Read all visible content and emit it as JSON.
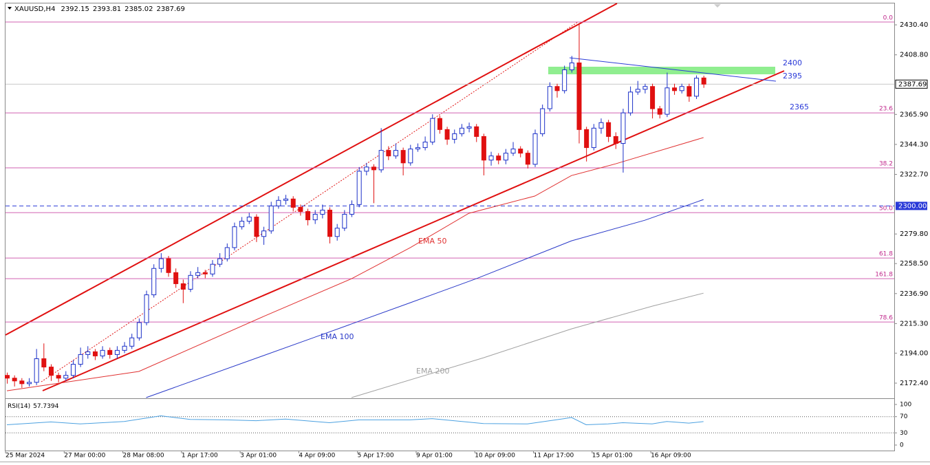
{
  "chart_data": {
    "type": "candlestick",
    "symbol": "XAUUSD,H4",
    "categories": [
      "25 Mar 2024",
      null,
      null,
      null,
      null,
      null,
      null,
      null,
      "27 Mar 00:00",
      null,
      null,
      null,
      null,
      null,
      null,
      null,
      "28 Mar 08:00",
      null,
      null,
      null,
      null,
      null,
      null,
      null,
      "1 Apr 17:00",
      null,
      null,
      null,
      null,
      null,
      null,
      null,
      "3 Apr 01:00",
      null,
      null,
      null,
      null,
      null,
      null,
      null,
      "4 Apr 09:00",
      null,
      null,
      null,
      null,
      null,
      null,
      null,
      "5 Apr 17:00",
      null,
      null,
      null,
      null,
      null,
      null,
      null,
      "9 Apr 01:00",
      null,
      null,
      null,
      null,
      null,
      null,
      null,
      "10 Apr 09:00",
      null,
      null,
      null,
      null,
      null,
      null,
      null,
      "11 Apr 17:00",
      null,
      null,
      null,
      null,
      null,
      null,
      null,
      "15 Apr 01:00",
      null,
      null,
      null,
      null,
      null,
      null,
      null,
      "16 Apr 09:00",
      null,
      null,
      null,
      null,
      null,
      null,
      null
    ],
    "ohlc": [
      [
        2178,
        2180,
        2172,
        2176
      ],
      [
        2176,
        2178,
        2170,
        2174
      ],
      [
        2174,
        2176,
        2169,
        2172
      ],
      [
        2172,
        2176,
        2170,
        2173
      ],
      [
        2173,
        2197,
        2171,
        2190
      ],
      [
        2190,
        2201,
        2181,
        2184
      ],
      [
        2184,
        2186,
        2174,
        2178
      ],
      [
        2178,
        2180,
        2173,
        2176
      ],
      [
        2176,
        2181,
        2174,
        2178
      ],
      [
        2178,
        2189,
        2176,
        2186
      ],
      [
        2186,
        2198,
        2184,
        2193
      ],
      [
        2193,
        2199,
        2190,
        2195
      ],
      [
        2195,
        2197,
        2189,
        2192
      ],
      [
        2192,
        2199,
        2190,
        2196
      ],
      [
        2196,
        2198,
        2190,
        2193
      ],
      [
        2193,
        2199,
        2190,
        2196
      ],
      [
        2196,
        2202,
        2194,
        2199
      ],
      [
        2199,
        2208,
        2197,
        2205
      ],
      [
        2205,
        2219,
        2203,
        2216
      ],
      [
        2216,
        2239,
        2214,
        2236
      ],
      [
        2236,
        2258,
        2234,
        2255
      ],
      [
        2255,
        2266,
        2252,
        2262
      ],
      [
        2262,
        2264,
        2249,
        2252
      ],
      [
        2252,
        2255,
        2241,
        2244
      ],
      [
        2244,
        2247,
        2230,
        2240
      ],
      [
        2240,
        2253,
        2238,
        2250
      ],
      [
        2250,
        2256,
        2248,
        2252
      ],
      [
        2252,
        2254,
        2248,
        2251
      ],
      [
        2251,
        2261,
        2249,
        2258
      ],
      [
        2258,
        2266,
        2256,
        2262
      ],
      [
        2262,
        2273,
        2260,
        2270
      ],
      [
        2270,
        2288,
        2268,
        2285
      ],
      [
        2285,
        2292,
        2283,
        2289
      ],
      [
        2289,
        2295,
        2287,
        2292
      ],
      [
        2292,
        2294,
        2274,
        2278
      ],
      [
        2278,
        2285,
        2272,
        2282
      ],
      [
        2282,
        2303,
        2280,
        2300
      ],
      [
        2300,
        2307,
        2298,
        2304
      ],
      [
        2304,
        2308,
        2301,
        2305
      ],
      [
        2305,
        2307,
        2296,
        2299
      ],
      [
        2299,
        2301,
        2293,
        2296
      ],
      [
        2296,
        2298,
        2286,
        2290
      ],
      [
        2290,
        2297,
        2287,
        2294
      ],
      [
        2294,
        2301,
        2291,
        2297
      ],
      [
        2297,
        2299,
        2273,
        2278
      ],
      [
        2278,
        2287,
        2275,
        2284
      ],
      [
        2284,
        2297,
        2282,
        2294
      ],
      [
        2294,
        2304,
        2292,
        2301
      ],
      [
        2301,
        2328,
        2299,
        2325
      ],
      [
        2325,
        2331,
        2322,
        2328
      ],
      [
        2328,
        2330,
        2302,
        2326
      ],
      [
        2326,
        2356,
        2324,
        2340
      ],
      [
        2340,
        2343,
        2333,
        2336
      ],
      [
        2336,
        2345,
        2334,
        2340
      ],
      [
        2340,
        2342,
        2322,
        2331
      ],
      [
        2331,
        2344,
        2329,
        2341
      ],
      [
        2341,
        2345,
        2339,
        2342
      ],
      [
        2342,
        2350,
        2340,
        2346
      ],
      [
        2346,
        2366,
        2344,
        2363
      ],
      [
        2363,
        2365,
        2352,
        2355
      ],
      [
        2355,
        2357,
        2344,
        2348
      ],
      [
        2348,
        2355,
        2345,
        2352
      ],
      [
        2352,
        2359,
        2350,
        2356
      ],
      [
        2356,
        2360,
        2353,
        2357
      ],
      [
        2357,
        2359,
        2346,
        2350
      ],
      [
        2350,
        2352,
        2322,
        2333
      ],
      [
        2333,
        2339,
        2329,
        2336
      ],
      [
        2336,
        2338,
        2330,
        2333
      ],
      [
        2333,
        2341,
        2330,
        2338
      ],
      [
        2338,
        2346,
        2336,
        2341
      ],
      [
        2341,
        2343,
        2335,
        2338
      ],
      [
        2338,
        2340,
        2327,
        2330
      ],
      [
        2330,
        2355,
        2328,
        2352
      ],
      [
        2352,
        2373,
        2350,
        2370
      ],
      [
        2370,
        2389,
        2368,
        2386
      ],
      [
        2386,
        2388,
        2378,
        2383
      ],
      [
        2383,
        2401,
        2381,
        2398
      ],
      [
        2398,
        2408,
        2396,
        2403
      ],
      [
        2403,
        2431.5,
        2345,
        2355
      ],
      [
        2355,
        2357,
        2332,
        2342
      ],
      [
        2342,
        2359,
        2340,
        2356
      ],
      [
        2356,
        2363,
        2352,
        2360
      ],
      [
        2360,
        2362,
        2346,
        2350
      ],
      [
        2350,
        2353,
        2341,
        2345
      ],
      [
        2345,
        2370,
        2324,
        2367
      ],
      [
        2367,
        2386,
        2365,
        2382
      ],
      [
        2382,
        2390,
        2380,
        2384
      ],
      [
        2384,
        2388,
        2381,
        2386
      ],
      [
        2386,
        2388,
        2363,
        2370
      ],
      [
        2370,
        2372,
        2363,
        2366
      ],
      [
        2366,
        2396,
        2364,
        2385
      ],
      [
        2385,
        2388,
        2380,
        2383
      ],
      [
        2383,
        2388,
        2381,
        2386
      ],
      [
        2386,
        2388,
        2375,
        2379
      ],
      [
        2379,
        2394,
        2377,
        2392
      ],
      [
        2392.15,
        2393.81,
        2385.02,
        2387.69
      ]
    ],
    "up_color": "#1a2fc8",
    "down_color": "#e01010",
    "ylim": [
      2162,
      2445.8
    ],
    "yticks": [
      {
        "value": 2430.4,
        "label": "2430.40"
      },
      {
        "value": 2408.8,
        "label": "2408.80"
      },
      {
        "value": 2365.9,
        "label": "2365.90"
      },
      {
        "value": 2344.3,
        "label": "2344.30"
      },
      {
        "value": 2322.7,
        "label": "2322.70"
      },
      {
        "value": 2279.8,
        "label": "2279.80"
      },
      {
        "value": 2258.5,
        "label": "2258.50"
      },
      {
        "value": 2236.9,
        "label": "2236.90"
      },
      {
        "value": 2215.3,
        "label": "2215.30"
      },
      {
        "value": 2194,
        "label": "2194.00"
      },
      {
        "value": 2172.4,
        "label": "2172.40"
      }
    ],
    "hline": {
      "value": 2300,
      "label": "2300.00",
      "color": "#2a3ad8"
    },
    "fib_levels": [
      {
        "label": "0.0",
        "price": 2432.4
      },
      {
        "label": "23.6",
        "price": 2367.0
      },
      {
        "label": "38.2",
        "price": 2327.4
      },
      {
        "label": "50.0",
        "price": 2295.2
      },
      {
        "label": "61.8",
        "price": 2262.5
      },
      {
        "label": "161.8",
        "price": 2247.6
      },
      {
        "label": "78.6",
        "price": 2216.4
      }
    ],
    "fib_color": "#d060b0",
    "series": [
      {
        "name": "EMA 50",
        "color": "#e03030",
        "x": [
          0,
          18,
          35,
          47,
          55,
          63,
          72,
          77,
          83,
          95
        ],
        "values": [
          2166.9,
          2180.8,
          2220.4,
          2247.6,
          2269.9,
          2294.7,
          2307.1,
          2321.9,
          2330.3,
          2349.2
        ]
      },
      {
        "name": "EMA 100",
        "color": "#2838c8",
        "x": [
          19,
          42,
          55,
          64,
          77,
          87,
          95
        ],
        "values": [
          2162,
          2205.5,
          2230.3,
          2247.6,
          2274.9,
          2289.7,
          2304.6
        ]
      },
      {
        "name": "EMA 200",
        "color": "#a0a0a0",
        "x": [
          47,
          65,
          77,
          88,
          95
        ],
        "values": [
          2162,
          2190.7,
          2211.5,
          2227.8,
          2237.2
        ]
      }
    ],
    "annotations": [
      "2400",
      "2395",
      "2365"
    ],
    "rsi": {
      "name": "RSI(14)",
      "color": "#4aa0e0",
      "x": [
        0,
        6,
        10,
        16,
        21,
        25,
        30,
        34,
        38,
        44,
        48,
        55,
        58,
        65,
        71,
        76,
        77,
        79,
        82,
        84,
        88,
        90,
        93,
        95
      ],
      "values": [
        50,
        57,
        52,
        58,
        72,
        63,
        62,
        60,
        64,
        55,
        62,
        62,
        65,
        53,
        52,
        65,
        68,
        50,
        52,
        55,
        52,
        58,
        54,
        57.7394
      ],
      "ylim": [
        0,
        100
      ],
      "yticks": [
        100,
        70,
        30,
        0
      ],
      "levels": [
        70,
        30
      ]
    }
  }
}
